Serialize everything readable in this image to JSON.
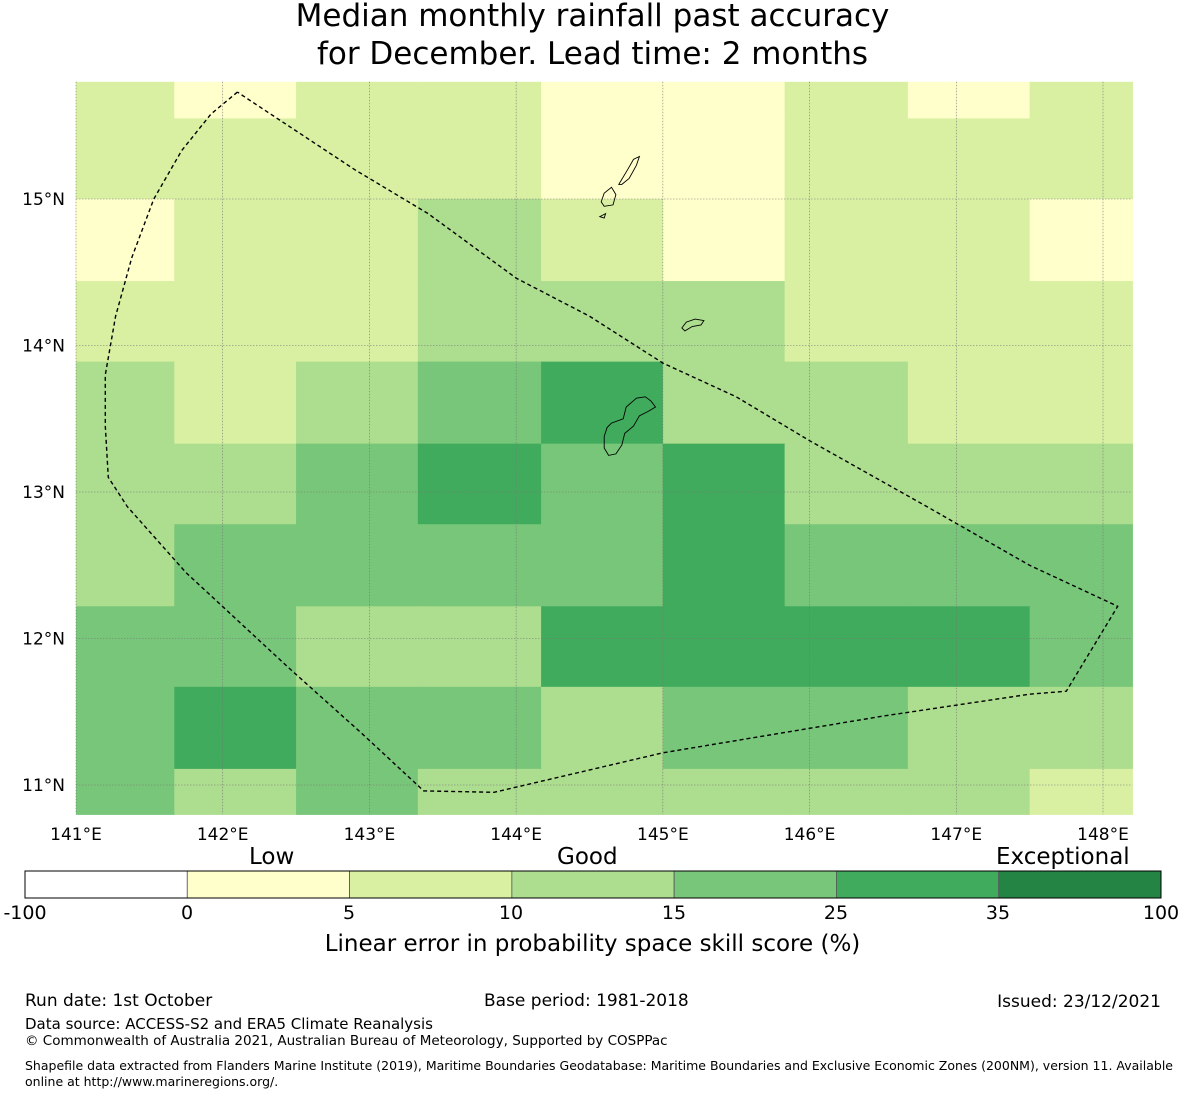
{
  "title": {
    "line1": "Median monthly rainfall past accuracy",
    "line2": "for December. Lead time: 2 months"
  },
  "map": {
    "lon_labels": [
      "141°E",
      "142°E",
      "143°E",
      "144°E",
      "145°E",
      "146°E",
      "147°E",
      "148°E"
    ],
    "lat_labels": [
      "15°N",
      "14°N",
      "13°N",
      "12°N",
      "11°N"
    ],
    "lon_values": [
      141,
      142,
      143,
      144,
      145,
      146,
      147,
      148
    ],
    "lat_values": [
      15,
      14,
      13,
      12,
      11
    ],
    "grid_lon_edges": [
      141.0,
      141.67,
      142.5,
      143.33,
      144.17,
      145.0,
      145.83,
      146.67,
      147.5,
      148.2
    ],
    "grid_lat_edges": [
      15.8,
      15.55,
      15.0,
      14.44,
      13.89,
      13.33,
      12.78,
      12.22,
      11.67,
      11.11,
      10.8
    ],
    "skill_class_grid": [
      [
        1,
        0,
        1,
        1,
        0,
        0,
        1,
        0,
        1
      ],
      [
        1,
        1,
        1,
        1,
        0,
        0,
        1,
        1,
        1
      ],
      [
        0,
        1,
        1,
        2,
        1,
        0,
        1,
        1,
        0
      ],
      [
        1,
        1,
        1,
        2,
        2,
        2,
        1,
        1,
        1
      ],
      [
        2,
        1,
        2,
        3,
        4,
        2,
        2,
        1,
        1
      ],
      [
        2,
        2,
        3,
        4,
        3,
        4,
        2,
        2,
        2
      ],
      [
        2,
        3,
        3,
        3,
        3,
        4,
        3,
        3,
        3
      ],
      [
        3,
        3,
        2,
        2,
        4,
        4,
        4,
        4,
        3
      ],
      [
        3,
        4,
        3,
        3,
        2,
        3,
        3,
        2,
        2
      ],
      [
        3,
        2,
        3,
        2,
        2,
        2,
        2,
        2,
        1
      ]
    ],
    "eez_outline_lonlat": [
      [
        142.1,
        15.73
      ],
      [
        141.92,
        15.58
      ],
      [
        141.72,
        15.33
      ],
      [
        141.53,
        15.0
      ],
      [
        141.38,
        14.6
      ],
      [
        141.27,
        14.2
      ],
      [
        141.2,
        13.8
      ],
      [
        141.2,
        13.45
      ],
      [
        141.22,
        13.1
      ],
      [
        141.35,
        12.9
      ],
      [
        141.75,
        12.45
      ],
      [
        142.45,
        11.8
      ],
      [
        142.95,
        11.35
      ],
      [
        143.37,
        10.96
      ],
      [
        143.85,
        10.95
      ],
      [
        145.0,
        11.22
      ],
      [
        146.5,
        11.47
      ],
      [
        147.5,
        11.62
      ],
      [
        147.75,
        11.64
      ],
      [
        148.1,
        12.22
      ],
      [
        147.5,
        12.5
      ],
      [
        146.8,
        12.9
      ],
      [
        146.0,
        13.35
      ],
      [
        145.5,
        13.65
      ],
      [
        145.0,
        13.88
      ],
      [
        144.5,
        14.2
      ],
      [
        144.0,
        14.46
      ],
      [
        143.4,
        14.9
      ],
      [
        142.9,
        15.2
      ],
      [
        142.1,
        15.73
      ]
    ],
    "land_lonlat": [
      [
        [
          144.62,
          13.44
        ],
        [
          144.65,
          13.47
        ],
        [
          144.73,
          13.5
        ],
        [
          144.75,
          13.58
        ],
        [
          144.82,
          13.64
        ],
        [
          144.88,
          13.65
        ],
        [
          144.92,
          13.62
        ],
        [
          144.95,
          13.58
        ],
        [
          144.9,
          13.55
        ],
        [
          144.84,
          13.52
        ],
        [
          144.8,
          13.45
        ],
        [
          144.74,
          13.4
        ],
        [
          144.72,
          13.32
        ],
        [
          144.68,
          13.26
        ],
        [
          144.63,
          13.25
        ],
        [
          144.6,
          13.3
        ],
        [
          144.6,
          13.38
        ],
        [
          144.62,
          13.44
        ]
      ],
      [
        [
          145.13,
          14.12
        ],
        [
          145.16,
          14.16
        ],
        [
          145.22,
          14.18
        ],
        [
          145.28,
          14.17
        ],
        [
          145.26,
          14.14
        ],
        [
          145.2,
          14.13
        ],
        [
          145.15,
          14.1
        ],
        [
          145.13,
          14.12
        ]
      ],
      [
        [
          144.58,
          14.98
        ],
        [
          144.6,
          15.04
        ],
        [
          144.65,
          15.08
        ],
        [
          144.68,
          15.03
        ],
        [
          144.66,
          14.96
        ],
        [
          144.6,
          14.95
        ],
        [
          144.58,
          14.98
        ]
      ],
      [
        [
          144.7,
          15.1
        ],
        [
          144.76,
          15.2
        ],
        [
          144.8,
          15.27
        ],
        [
          144.84,
          15.29
        ],
        [
          144.82,
          15.23
        ],
        [
          144.77,
          15.14
        ],
        [
          144.72,
          15.1
        ],
        [
          144.7,
          15.1
        ]
      ],
      [
        [
          144.57,
          14.88
        ],
        [
          144.61,
          14.9
        ],
        [
          144.6,
          14.87
        ],
        [
          144.57,
          14.88
        ]
      ]
    ]
  },
  "colorbar": {
    "category_labels": [
      "Low",
      "Good",
      "Exceptional"
    ],
    "boundaries": [
      "-100",
      "0",
      "5",
      "10",
      "15",
      "25",
      "35",
      "100"
    ],
    "colors": [
      "#ffffff",
      "#ffffcc",
      "#d9f0a3",
      "#addd8e",
      "#78c679",
      "#41ab5d",
      "#238443"
    ],
    "title": "Linear error in probability space skill score (%)"
  },
  "footer": {
    "run_date": "Run date: 1st October",
    "base_period": "Base period: 1981-2018",
    "issued": "Issued: 23/12/2021",
    "data_source": "Data source: ACCESS-S2 and ERA5 Climate Reanalysis",
    "copyright": "© Commonwealth of Australia 2021, Australian Bureau of Meteorology, Supported by COSPPac",
    "shapefile": "Shapefile data extracted from Flanders Marine Institute (2019), Maritime Boundaries Geodatabase: Maritime Boundaries and Exclusive Economic Zones (200NM), version 11. Available online at http://www.marineregions.org/."
  }
}
